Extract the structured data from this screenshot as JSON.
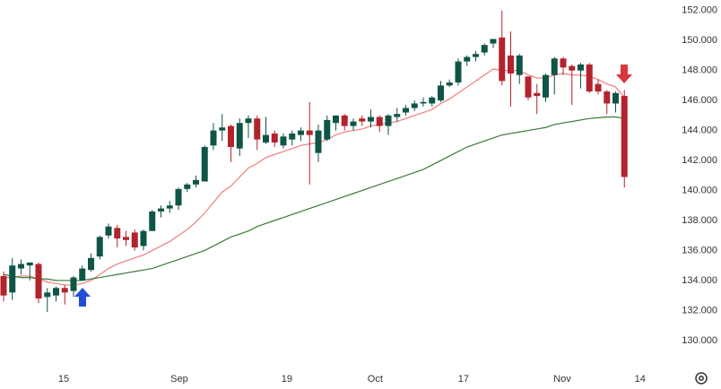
{
  "chart_data": {
    "type": "candlestick",
    "x": [
      0,
      1,
      2,
      3,
      4,
      5,
      6,
      7,
      8,
      9,
      10,
      11,
      12,
      13,
      14,
      15,
      16,
      17,
      18,
      19,
      20,
      21,
      22,
      23,
      24,
      25,
      26,
      27,
      28,
      29,
      30,
      31,
      32,
      33,
      34,
      35,
      36,
      37,
      38,
      39,
      40,
      41,
      42,
      43,
      44,
      45,
      46,
      47,
      48,
      49,
      50,
      51,
      52,
      53,
      54,
      55,
      56,
      57,
      58,
      59,
      60,
      61,
      62,
      63,
      64,
      65,
      66,
      67,
      68,
      69,
      70,
      71
    ],
    "open": [
      134.3,
      133.2,
      134.8,
      135.0,
      135.1,
      132.9,
      133.0,
      133.5,
      133.3,
      134.0,
      134.7,
      135.6,
      137.0,
      137.5,
      136.9,
      137.2,
      136.3,
      137.3,
      138.6,
      138.8,
      139.0,
      140.1,
      140.4,
      140.6,
      143.0,
      144.0,
      144.3,
      142.8,
      144.5,
      144.8,
      143.2,
      143.8,
      143.0,
      143.4,
      143.7,
      144.0,
      142.5,
      143.4,
      144.5,
      145.0,
      144.3,
      144.8,
      144.6,
      144.9,
      144.3,
      144.9,
      145.2,
      145.5,
      145.8,
      145.8,
      146.0,
      147.0,
      147.2,
      148.6,
      148.9,
      149.2,
      149.8,
      150.2,
      149.0,
      147.7,
      147.6,
      146.5,
      146.2,
      147.7,
      148.8,
      148.3,
      148.0,
      148.4,
      147.1,
      146.6,
      145.8,
      146.3
    ],
    "high": [
      134.6,
      135.5,
      135.4,
      135.2,
      135.2,
      133.5,
      133.6,
      133.7,
      134.3,
      135.0,
      135.8,
      137.0,
      137.8,
      137.7,
      137.3,
      137.4,
      137.4,
      138.7,
      139.0,
      139.3,
      140.2,
      140.5,
      141.0,
      143.0,
      144.5,
      145.1,
      144.4,
      144.8,
      145.0,
      145.0,
      144.9,
      144.0,
      143.8,
      144.0,
      144.2,
      145.9,
      144.4,
      145.0,
      145.0,
      145.1,
      144.8,
      145.0,
      145.4,
      145.0,
      145.1,
      145.5,
      145.7,
      146.0,
      146.2,
      146.3,
      147.3,
      147.4,
      148.8,
      149.0,
      149.3,
      149.8,
      150.1,
      152.0,
      150.6,
      149.1,
      147.6,
      147.1,
      147.8,
      148.9,
      148.9,
      148.4,
      148.5,
      148.5,
      147.4,
      146.7,
      146.6,
      146.7
    ],
    "low": [
      132.6,
      132.7,
      134.4,
      134.0,
      132.5,
      131.9,
      132.6,
      132.4,
      132.9,
      134.0,
      134.6,
      135.4,
      136.8,
      136.2,
      136.3,
      136.0,
      136.0,
      137.3,
      138.2,
      138.5,
      138.7,
      139.9,
      140.2,
      140.6,
      142.7,
      143.3,
      141.9,
      142.3,
      143.5,
      142.7,
      143.1,
      142.9,
      142.8,
      143.0,
      143.3,
      140.4,
      141.9,
      143.3,
      144.0,
      144.0,
      144.0,
      144.3,
      144.2,
      143.9,
      143.7,
      144.6,
      145.0,
      145.3,
      145.6,
      145.6,
      145.9,
      146.9,
      147.0,
      148.3,
      148.6,
      149.0,
      149.5,
      147.0,
      145.6,
      147.1,
      146.0,
      145.1,
      145.9,
      146.4,
      147.7,
      145.7,
      146.8,
      146.5,
      146.4,
      145.1,
      145.2,
      140.2
    ],
    "close": [
      133.0,
      135.0,
      135.1,
      135.2,
      132.8,
      133.2,
      133.5,
      133.2,
      134.2,
      134.8,
      135.5,
      136.9,
      137.6,
      136.8,
      136.7,
      136.2,
      137.3,
      138.6,
      138.8,
      139.0,
      140.1,
      140.4,
      140.7,
      142.9,
      144.0,
      144.2,
      142.9,
      144.5,
      144.8,
      143.4,
      143.7,
      143.2,
      143.6,
      143.8,
      144.0,
      143.7,
      144.0,
      144.7,
      145.0,
      144.3,
      144.6,
      144.6,
      144.9,
      144.3,
      145.0,
      145.1,
      145.5,
      145.8,
      145.9,
      146.2,
      147.0,
      147.2,
      148.6,
      148.9,
      149.1,
      149.7,
      150.1,
      147.3,
      147.8,
      149.0,
      146.2,
      146.3,
      147.7,
      148.8,
      148.2,
      148.0,
      148.4,
      146.6,
      146.6,
      145.8,
      146.5,
      140.9
    ],
    "up_color": "#0f5546",
    "down_color": "#b3232c",
    "lines": [
      {
        "color": "#f07c7e",
        "values": [
          134.2,
          134.2,
          134.3,
          134.3,
          134.1,
          133.9,
          133.8,
          133.7,
          133.7,
          133.8,
          134.0,
          134.4,
          134.8,
          135.1,
          135.3,
          135.5,
          135.7,
          136.0,
          136.3,
          136.6,
          137.0,
          137.4,
          137.9,
          138.5,
          139.2,
          139.9,
          140.3,
          140.9,
          141.5,
          141.8,
          142.2,
          142.4,
          142.6,
          142.8,
          143.0,
          143.1,
          143.2,
          143.4,
          143.7,
          143.9,
          144.0,
          144.1,
          144.3,
          144.4,
          144.5,
          144.6,
          144.8,
          145.0,
          145.2,
          145.4,
          145.8,
          146.1,
          146.5,
          146.9,
          147.3,
          147.7,
          148.1,
          148.0,
          148.0,
          148.0,
          147.7,
          147.5,
          147.5,
          147.7,
          147.8,
          147.7,
          147.7,
          147.6,
          147.4,
          147.1,
          146.9,
          146.2
        ]
      },
      {
        "color": "#3b7a36",
        "values": [
          134.4,
          134.3,
          134.2,
          134.2,
          134.1,
          134.1,
          134.0,
          134.0,
          134.0,
          134.0,
          134.1,
          134.2,
          134.3,
          134.4,
          134.5,
          134.6,
          134.7,
          134.8,
          135.0,
          135.2,
          135.4,
          135.6,
          135.8,
          136.0,
          136.3,
          136.6,
          136.9,
          137.1,
          137.3,
          137.6,
          137.8,
          138.0,
          138.2,
          138.4,
          138.6,
          138.8,
          139.0,
          139.2,
          139.4,
          139.6,
          139.8,
          140.0,
          140.2,
          140.4,
          140.6,
          140.8,
          141.0,
          141.2,
          141.4,
          141.7,
          142.0,
          142.3,
          142.6,
          142.9,
          143.1,
          143.3,
          143.5,
          143.7,
          143.8,
          143.9,
          144.0,
          144.1,
          144.2,
          144.4,
          144.5,
          144.6,
          144.7,
          144.8,
          144.85,
          144.9,
          144.9,
          144.8
        ]
      }
    ],
    "xlim": [
      -0.41,
      76.0
    ],
    "xticks": [
      {
        "value": 6.87,
        "label": "15"
      },
      {
        "value": 20.1,
        "label": "Sep"
      },
      {
        "value": 32.4,
        "label": "19"
      },
      {
        "value": 42.5,
        "label": "Oct"
      },
      {
        "value": 52.6,
        "label": "17"
      },
      {
        "value": 63.9,
        "label": "Nov"
      },
      {
        "value": 72.8,
        "label": "14"
      }
    ],
    "ylim": [
      128.2,
      152.7
    ],
    "yticks": [
      {
        "value": 130,
        "label": "130.000"
      },
      {
        "value": 132,
        "label": "132.000"
      },
      {
        "value": 134,
        "label": "134.000"
      },
      {
        "value": 136,
        "label": "136.000"
      },
      {
        "value": 138,
        "label": "138.000"
      },
      {
        "value": 140,
        "label": "140.000"
      },
      {
        "value": 142,
        "label": "142.000"
      },
      {
        "value": 144,
        "label": "144.000"
      },
      {
        "value": 146,
        "label": "146.000"
      },
      {
        "value": 148,
        "label": "148.000"
      },
      {
        "value": 150,
        "label": "150.000"
      },
      {
        "value": 152,
        "label": "152.000"
      }
    ]
  }
}
